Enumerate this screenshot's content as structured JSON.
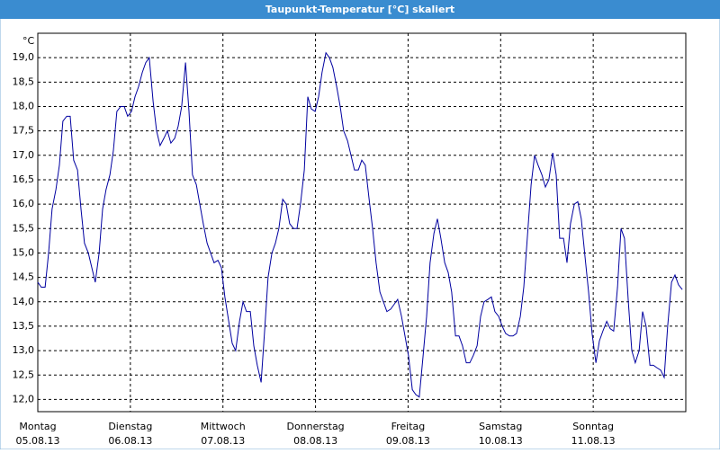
{
  "chart_data": {
    "type": "line",
    "title": "Taupunkt-Temperatur [°C] skaliert",
    "y_unit": "°C",
    "xlim": [
      0,
      168
    ],
    "ylim": [
      11.75,
      19.5
    ],
    "xticks": [
      {
        "value": 0,
        "label": "Montag"
      },
      {
        "value": 24,
        "label": "Dienstag"
      },
      {
        "value": 48,
        "label": "Mittwoch"
      },
      {
        "value": 72,
        "label": "Donnerstag"
      },
      {
        "value": 96,
        "label": "Freitag"
      },
      {
        "value": 120,
        "label": "Samstag"
      },
      {
        "value": 144,
        "label": "Sonntag"
      }
    ],
    "xtick_dates": [
      "05.08.13",
      "06.08.13",
      "07.08.13",
      "08.08.13",
      "09.08.13",
      "10.08.13",
      "11.08.13"
    ],
    "yticks": [
      {
        "value": 12,
        "label": "12,0"
      },
      {
        "value": 12.5,
        "label": "12,5"
      },
      {
        "value": 13,
        "label": "13,0"
      },
      {
        "value": 13.5,
        "label": "13,5"
      },
      {
        "value": 14,
        "label": "14,0"
      },
      {
        "value": 14.5,
        "label": "14,5"
      },
      {
        "value": 15,
        "label": "15,0"
      },
      {
        "value": 15.5,
        "label": "15,5"
      },
      {
        "value": 16,
        "label": "16,0"
      },
      {
        "value": 16.5,
        "label": "16,5"
      },
      {
        "value": 17,
        "label": "17,0"
      },
      {
        "value": 17.5,
        "label": "17,5"
      },
      {
        "value": 18,
        "label": "18,0"
      },
      {
        "value": 18.5,
        "label": "18,5"
      },
      {
        "value": 19,
        "label": "19,0"
      }
    ],
    "grid": true,
    "x": [
      0,
      0.9,
      1.9,
      2.8,
      3.7,
      4.7,
      5.6,
      6.5,
      7.5,
      8.4,
      9.3,
      10.3,
      11.2,
      12.1,
      13.1,
      14,
      14.9,
      15.9,
      16.8,
      17.7,
      18.7,
      19.6,
      20.5,
      21.5,
      22.4,
      23.3,
      24.3,
      25.2,
      26.1,
      27.1,
      28,
      28.9,
      29.9,
      30.8,
      31.7,
      32.7,
      33.6,
      34.5,
      35.5,
      36.4,
      37.3,
      38.3,
      39.2,
      40.1,
      41.1,
      42,
      42.9,
      43.9,
      44.8,
      45.7,
      46.7,
      47.6,
      48.5,
      49.5,
      50.4,
      51.3,
      52.3,
      53.2,
      54.1,
      55.1,
      56,
      56.9,
      57.9,
      58.8,
      59.7,
      60.7,
      61.6,
      62.5,
      63.5,
      64.4,
      65.3,
      66.3,
      67.2,
      68.1,
      69.1,
      70,
      70.9,
      71.9,
      72.8,
      73.7,
      74.7,
      75.6,
      76.5,
      77.5,
      78.4,
      79.3,
      80.3,
      81.2,
      82.1,
      83.1,
      84,
      84.9,
      85.9,
      86.8,
      87.7,
      88.7,
      89.6,
      90.5,
      91.5,
      92.4,
      93.3,
      94.3,
      95.2,
      96.1,
      97.1,
      98,
      98.9,
      99.9,
      100.8,
      101.7,
      102.7,
      103.6,
      104.5,
      105.5,
      106.4,
      107.3,
      108.3,
      109.2,
      110.1,
      111.1,
      112,
      112.9,
      113.9,
      114.8,
      115.7,
      116.7,
      117.6,
      118.5,
      119.5,
      120.4,
      121.3,
      122.3,
      123.2,
      124.1,
      125.1,
      126,
      126.9,
      127.9,
      128.8,
      129.7,
      130.7,
      131.6,
      132.5,
      133.5,
      134.4,
      135.3,
      136.3,
      137.2,
      138.1,
      139.1,
      140,
      140.9,
      141.9,
      142.8,
      143.7,
      144.7,
      145.6,
      146.5,
      147.5,
      148.4,
      149.3,
      150.3,
      151.2,
      152.1,
      153.1,
      154,
      154.9,
      155.9,
      156.8,
      157.7,
      158.7,
      159.6,
      160.5,
      161.5,
      162.4,
      163.3,
      164.3,
      165.2,
      166.1,
      167.1
    ],
    "series": [
      {
        "color": "#0000a0",
        "values": [
          14.4,
          14.3,
          14.3,
          15.0,
          15.9,
          16.3,
          16.8,
          17.7,
          17.8,
          17.8,
          16.9,
          16.7,
          15.9,
          15.2,
          15.0,
          14.7,
          14.4,
          15.0,
          15.9,
          16.3,
          16.6,
          17.1,
          17.9,
          18.0,
          18.0,
          17.8,
          17.9,
          18.2,
          18.4,
          18.7,
          18.9,
          19.0,
          18.1,
          17.5,
          17.2,
          17.35,
          17.5,
          17.25,
          17.35,
          17.6,
          18.0,
          18.9,
          17.9,
          16.6,
          16.4,
          16.0,
          15.6,
          15.2,
          15.0,
          14.8,
          14.85,
          14.7,
          14.1,
          13.6,
          13.15,
          13.0,
          13.6,
          14.0,
          13.8,
          13.8,
          13.1,
          12.7,
          12.35,
          13.4,
          14.5,
          15.0,
          15.2,
          15.5,
          16.1,
          16.0,
          15.6,
          15.5,
          15.5,
          16.0,
          16.7,
          18.2,
          17.95,
          17.9,
          18.2,
          18.7,
          19.1,
          19.0,
          18.8,
          18.4,
          18.0,
          17.5,
          17.3,
          17.0,
          16.7,
          16.7,
          16.9,
          16.8,
          16.1,
          15.5,
          14.8,
          14.2,
          14.0,
          13.8,
          13.85,
          13.95,
          14.05,
          13.7,
          13.3,
          12.9,
          12.2,
          12.1,
          12.05,
          12.9,
          13.7,
          14.8,
          15.4,
          15.7,
          15.3,
          14.8,
          14.6,
          14.2,
          13.3,
          13.3,
          13.1,
          12.75,
          12.75,
          12.9,
          13.1,
          13.7,
          14.0,
          14.05,
          14.1,
          13.8,
          13.7,
          13.5,
          13.35,
          13.3,
          13.3,
          13.35,
          13.7,
          14.3,
          15.3,
          16.4,
          17.0,
          16.8,
          16.6,
          16.35,
          16.5,
          17.05,
          16.6,
          15.3,
          15.3,
          14.8,
          15.6,
          16.0,
          16.05,
          15.7,
          14.9,
          14.2,
          13.35,
          12.75,
          13.2,
          13.4,
          13.6,
          13.45,
          13.4,
          14.3,
          15.5,
          15.3,
          14.0,
          13.0,
          12.75,
          13.0,
          13.8,
          13.5,
          12.7,
          12.7,
          12.65,
          12.6,
          12.45,
          13.5,
          14.4,
          14.55,
          14.35,
          14.25
        ]
      }
    ]
  }
}
